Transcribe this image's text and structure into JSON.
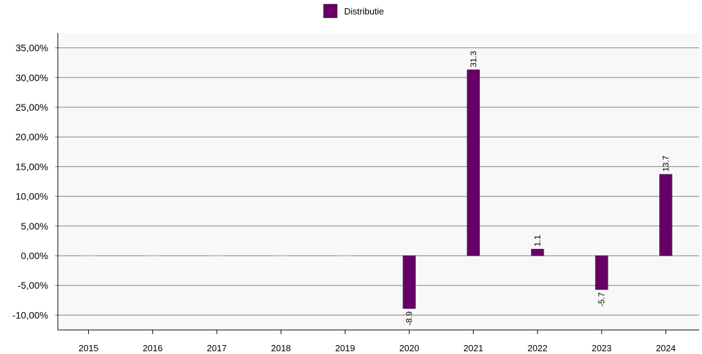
{
  "chart_data": {
    "type": "bar",
    "legend": {
      "placement": "top-center"
    },
    "grid": true,
    "ylim": [
      -12.5,
      37.5
    ],
    "yticks": [
      -10,
      -5,
      0,
      5,
      10,
      15,
      20,
      25,
      30,
      35
    ],
    "ytick_labels": [
      "-10,00%",
      "-5,00%",
      "0,00%",
      "5,00%",
      "10,00%",
      "15,00%",
      "20,00%",
      "25,00%",
      "30,00%",
      "35,00%"
    ],
    "categories": [
      "2015",
      "2016",
      "2017",
      "2018",
      "2019",
      "2020",
      "2021",
      "2022",
      "2023",
      "2024"
    ],
    "series": [
      {
        "name": "Distributie",
        "color": "#660066",
        "values": [
          null,
          null,
          null,
          null,
          null,
          -8.9,
          31.3,
          1.1,
          -5.7,
          13.7
        ],
        "labels": [
          "",
          "",
          "",
          "",
          "",
          "-8.9",
          "31.3",
          "1.1",
          "-5.7",
          "13.7"
        ]
      }
    ]
  }
}
